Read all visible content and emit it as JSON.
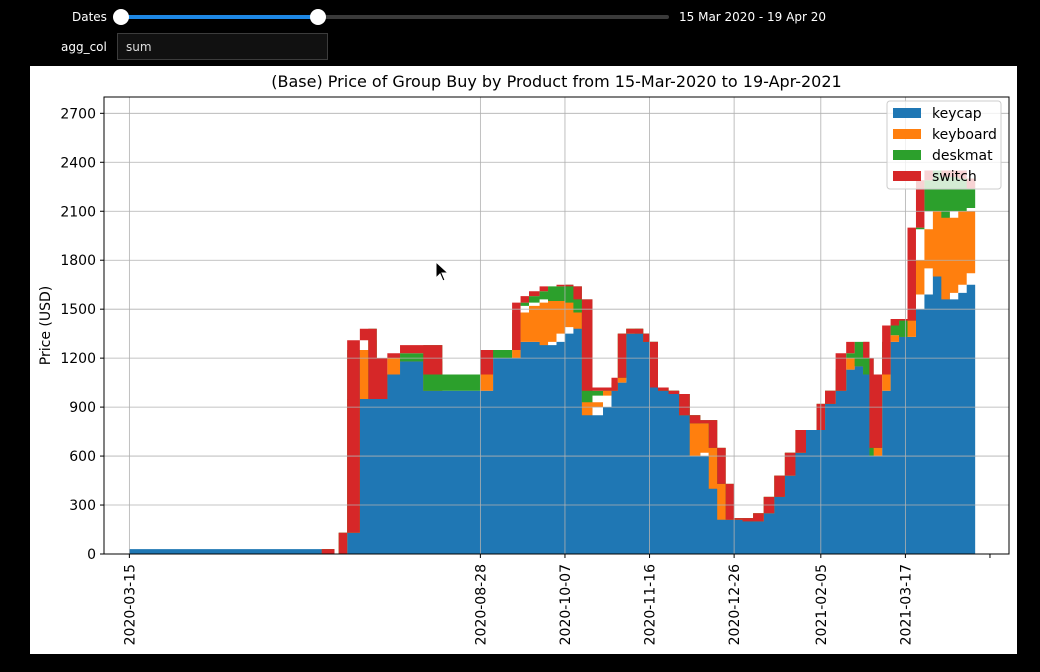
{
  "controls": {
    "dates_label": "Dates",
    "date_range_text": "15 Mar 2020 - 19 Apr 20",
    "slider_start_fraction": 0.0,
    "slider_end_fraction": 0.36,
    "agg_label": "agg_col",
    "agg_value": "sum"
  },
  "colors": {
    "keycap": "#1f77b4",
    "keyboard": "#ff7f0e",
    "deskmat": "#2ca02c",
    "switch": "#d62728",
    "slider_accent": "#1e88e5"
  },
  "chart_data": {
    "type": "area",
    "stacked": true,
    "title": "(Base) Price of Group Buy by Product from 15-Mar-2020 to 19-Apr-2021",
    "ylabel": "Price (USD)",
    "xlabel": "",
    "ylim": [
      0,
      2800
    ],
    "xlim": [
      "2020-03-03",
      "2021-05-05"
    ],
    "yticks": [
      0,
      300,
      600,
      900,
      1200,
      1500,
      1800,
      2100,
      2400,
      2700
    ],
    "xticks": [
      "2020-03-15",
      "2020-08-28",
      "2020-10-07",
      "2020-11-16",
      "2020-12-26",
      "2021-02-05",
      "2021-03-17"
    ],
    "grid": true,
    "legend_position": "top-right",
    "x": [
      "2020-03-15",
      "2020-06-14",
      "2020-06-20",
      "2020-06-22",
      "2020-06-26",
      "2020-07-02",
      "2020-07-06",
      "2020-07-10",
      "2020-07-15",
      "2020-07-21",
      "2020-08-01",
      "2020-08-10",
      "2020-08-17",
      "2020-08-22",
      "2020-08-28",
      "2020-09-03",
      "2020-09-08",
      "2020-09-12",
      "2020-09-16",
      "2020-09-20",
      "2020-09-25",
      "2020-09-29",
      "2020-10-03",
      "2020-10-07",
      "2020-10-11",
      "2020-10-15",
      "2020-10-20",
      "2020-10-25",
      "2020-10-29",
      "2020-11-01",
      "2020-11-05",
      "2020-11-09",
      "2020-11-13",
      "2020-11-16",
      "2020-11-20",
      "2020-11-25",
      "2020-11-30",
      "2020-12-05",
      "2020-12-10",
      "2020-12-14",
      "2020-12-18",
      "2020-12-22",
      "2020-12-26",
      "2020-12-30",
      "2021-01-04",
      "2021-01-09",
      "2021-01-14",
      "2021-01-19",
      "2021-01-24",
      "2021-01-29",
      "2021-02-03",
      "2021-02-07",
      "2021-02-12",
      "2021-02-17",
      "2021-02-21",
      "2021-02-25",
      "2021-02-28",
      "2021-03-02",
      "2021-03-06",
      "2021-03-10",
      "2021-03-14",
      "2021-03-18",
      "2021-03-22",
      "2021-03-26",
      "2021-03-30",
      "2021-04-03",
      "2021-04-07",
      "2021-04-11",
      "2021-04-15",
      "2021-04-19"
    ],
    "series": [
      {
        "name": "keycap",
        "values": [
          30,
          30,
          0,
          0,
          130,
          950,
          950,
          950,
          1100,
          1200,
          1180,
          1000,
          1000,
          1000,
          1000,
          1250,
          1200,
          1200,
          1300,
          1300,
          1300,
          1280,
          1300,
          1350,
          1390,
          1380,
          850,
          900,
          1000,
          1050,
          1350,
          1380,
          1350,
          1300,
          1020,
          1000,
          980,
          850,
          600,
          620,
          400,
          210,
          210,
          220,
          200,
          250,
          350,
          480,
          620,
          760,
          760,
          920,
          1000,
          1130,
          1200,
          1150,
          1100,
          600,
          1000,
          1300,
          1340,
          1330,
          1500,
          1590,
          1750,
          1700,
          1560,
          1600,
          1650,
          1720
        ]
      },
      {
        "name": "keyboard",
        "values": [
          0,
          0,
          0,
          0,
          0,
          300,
          360,
          0,
          0,
          0,
          0,
          0,
          0,
          0,
          0,
          0,
          0,
          0,
          180,
          220,
          240,
          280,
          250,
          200,
          150,
          100,
          80,
          70,
          0,
          0,
          0,
          0,
          0,
          0,
          0,
          0,
          0,
          0,
          200,
          200,
          250,
          220,
          0,
          0,
          0,
          0,
          0,
          0,
          0,
          0,
          0,
          0,
          0,
          0,
          0,
          0,
          0,
          0,
          0,
          0,
          0,
          0,
          300,
          400,
          350,
          400,
          500,
          500,
          450,
          400
        ]
      },
      {
        "name": "deskmat",
        "values": [
          0,
          0,
          0,
          0,
          0,
          60,
          70,
          0,
          100,
          30,
          100,
          100,
          100,
          100,
          100,
          0,
          50,
          50,
          60,
          60,
          70,
          80,
          90,
          100,
          100,
          80,
          70,
          50,
          0,
          30,
          0,
          0,
          0,
          0,
          0,
          0,
          0,
          0,
          0,
          0,
          0,
          0,
          0,
          0,
          0,
          0,
          0,
          0,
          0,
          0,
          0,
          0,
          0,
          100,
          100,
          150,
          100,
          50,
          100,
          100,
          100,
          100,
          200,
          300,
          250,
          250,
          250,
          250,
          200,
          120
        ]
      },
      {
        "name": "switch",
        "values": [
          0,
          0,
          0,
          0,
          0,
          0,
          0,
          0,
          0,
          0,
          0,
          0,
          0,
          0,
          0,
          0,
          0,
          0,
          0,
          0,
          0,
          0,
          0,
          0,
          0,
          0,
          0,
          0,
          0,
          0,
          0,
          0,
          0,
          0,
          0,
          0,
          0,
          0,
          0,
          0,
          0,
          0,
          0,
          0,
          0,
          0,
          0,
          0,
          0,
          0,
          0,
          0,
          0,
          0,
          0,
          0,
          0,
          0,
          0,
          0,
          0,
          0,
          0,
          0,
          0,
          0,
          0,
          0,
          0,
          0
        ]
      }
    ]
  }
}
